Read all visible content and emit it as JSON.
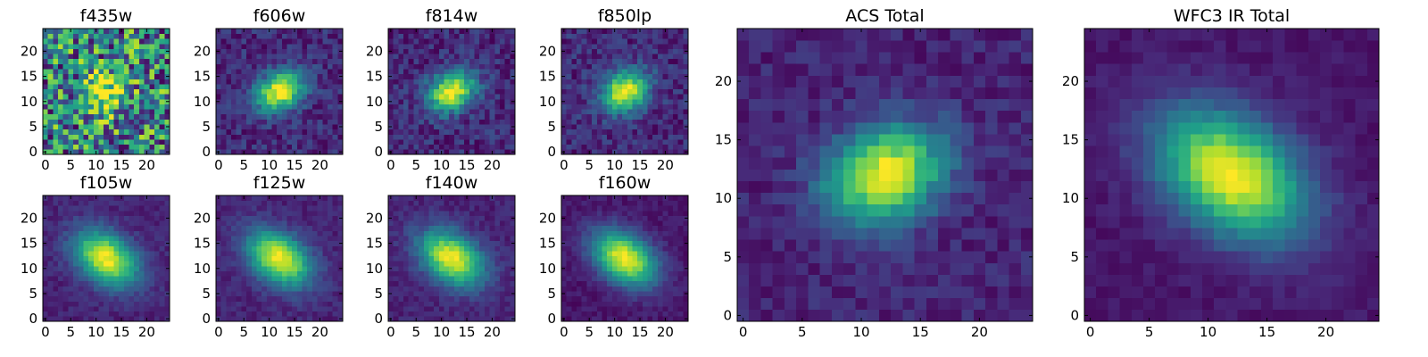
{
  "chart_data": [
    {
      "type": "heatmap",
      "title": "f435w",
      "grid": false,
      "xlim": [
        -0.5,
        24.5
      ],
      "ylim": [
        -0.5,
        24.5
      ],
      "xticks": [
        0,
        5,
        10,
        15,
        20
      ],
      "yticks": [
        0,
        5,
        10,
        15,
        20
      ],
      "center": [
        12,
        12
      ],
      "sigma": [
        3.0,
        2.8
      ],
      "angle": 0,
      "background": 0.45,
      "noise": 0.45,
      "colormap": "viridis"
    },
    {
      "type": "heatmap",
      "title": "f606w",
      "grid": false,
      "xlim": [
        -0.5,
        24.5
      ],
      "ylim": [
        -0.5,
        24.5
      ],
      "xticks": [
        0,
        5,
        10,
        15,
        20
      ],
      "yticks": [
        0,
        5,
        10,
        15,
        20
      ],
      "center": [
        12,
        12
      ],
      "sigma": [
        3.4,
        2.6
      ],
      "angle": 30,
      "background": 0.12,
      "noise": 0.12,
      "colormap": "viridis"
    },
    {
      "type": "heatmap",
      "title": "f814w",
      "grid": false,
      "xlim": [
        -0.5,
        24.5
      ],
      "ylim": [
        -0.5,
        24.5
      ],
      "xticks": [
        0,
        5,
        10,
        15,
        20
      ],
      "yticks": [
        0,
        5,
        10,
        15,
        20
      ],
      "center": [
        12,
        12
      ],
      "sigma": [
        3.4,
        2.6
      ],
      "angle": 30,
      "background": 0.12,
      "noise": 0.12,
      "colormap": "viridis"
    },
    {
      "type": "heatmap",
      "title": "f850lp",
      "grid": false,
      "xlim": [
        -0.5,
        24.5
      ],
      "ylim": [
        -0.5,
        24.5
      ],
      "xticks": [
        0,
        5,
        10,
        15,
        20
      ],
      "yticks": [
        0,
        5,
        10,
        15,
        20
      ],
      "center": [
        12,
        12
      ],
      "sigma": [
        3.4,
        2.6
      ],
      "angle": 30,
      "background": 0.12,
      "noise": 0.12,
      "colormap": "viridis"
    },
    {
      "type": "heatmap",
      "title": "f105w",
      "grid": false,
      "xlim": [
        -0.5,
        24.5
      ],
      "ylim": [
        -0.5,
        24.5
      ],
      "xticks": [
        0,
        5,
        10,
        15,
        20
      ],
      "yticks": [
        0,
        5,
        10,
        15,
        20
      ],
      "center": [
        12,
        12
      ],
      "sigma": [
        4.8,
        3.2
      ],
      "angle": -35,
      "background": 0.1,
      "noise": 0.06,
      "colormap": "viridis"
    },
    {
      "type": "heatmap",
      "title": "f125w",
      "grid": false,
      "xlim": [
        -0.5,
        24.5
      ],
      "ylim": [
        -0.5,
        24.5
      ],
      "xticks": [
        0,
        5,
        10,
        15,
        20
      ],
      "yticks": [
        0,
        5,
        10,
        15,
        20
      ],
      "center": [
        12,
        12
      ],
      "sigma": [
        4.8,
        3.2
      ],
      "angle": -35,
      "background": 0.1,
      "noise": 0.06,
      "colormap": "viridis"
    },
    {
      "type": "heatmap",
      "title": "f140w",
      "grid": false,
      "xlim": [
        -0.5,
        24.5
      ],
      "ylim": [
        -0.5,
        24.5
      ],
      "xticks": [
        0,
        5,
        10,
        15,
        20
      ],
      "yticks": [
        0,
        5,
        10,
        15,
        20
      ],
      "center": [
        12,
        12
      ],
      "sigma": [
        4.8,
        3.2
      ],
      "angle": -35,
      "background": 0.1,
      "noise": 0.06,
      "colormap": "viridis"
    },
    {
      "type": "heatmap",
      "title": "f160w",
      "grid": false,
      "xlim": [
        -0.5,
        24.5
      ],
      "ylim": [
        -0.5,
        24.5
      ],
      "xticks": [
        0,
        5,
        10,
        15,
        20
      ],
      "yticks": [
        0,
        5,
        10,
        15,
        20
      ],
      "center": [
        12,
        12
      ],
      "sigma": [
        4.8,
        3.2
      ],
      "angle": -35,
      "background": 0.06,
      "noise": 0.05,
      "colormap": "viridis"
    },
    {
      "type": "heatmap",
      "title": "ACS Total",
      "grid": false,
      "xlim": [
        -0.5,
        24.5
      ],
      "ylim": [
        -0.5,
        24.5
      ],
      "xticks": [
        0,
        5,
        10,
        15,
        20
      ],
      "yticks": [
        0,
        5,
        10,
        15,
        20
      ],
      "center": [
        12,
        12
      ],
      "sigma": [
        3.6,
        2.7
      ],
      "angle": 25,
      "background": 0.1,
      "noise": 0.08,
      "colormap": "viridis"
    },
    {
      "type": "heatmap",
      "title": "WFC3 IR Total",
      "grid": false,
      "xlim": [
        -0.5,
        24.5
      ],
      "ylim": [
        -0.5,
        24.5
      ],
      "xticks": [
        0,
        5,
        10,
        15,
        20
      ],
      "yticks": [
        0,
        5,
        10,
        15,
        20
      ],
      "center": [
        12,
        12
      ],
      "sigma": [
        4.8,
        3.2
      ],
      "angle": -35,
      "background": 0.06,
      "noise": 0.04,
      "colormap": "viridis"
    }
  ]
}
